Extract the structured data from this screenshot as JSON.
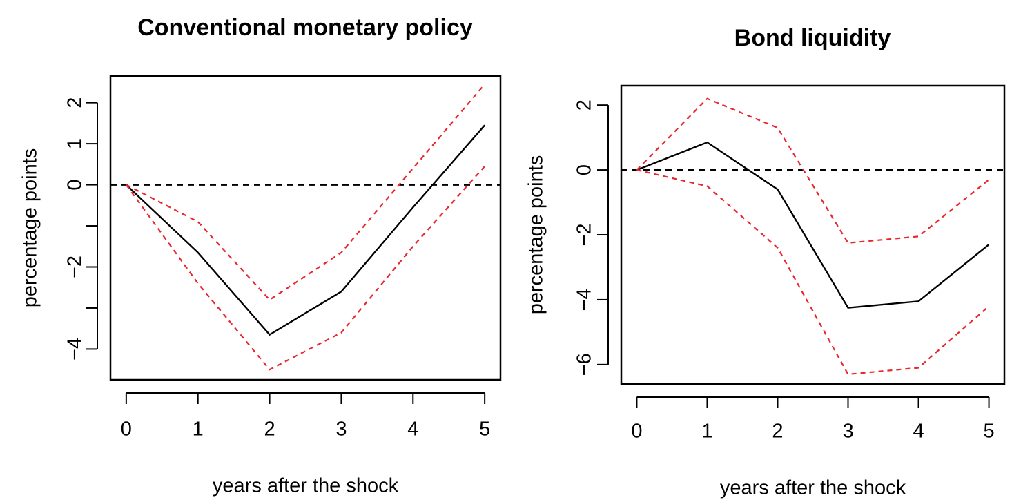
{
  "chart_data": [
    {
      "type": "line",
      "title": "Conventional monetary policy",
      "xlabel": "years after the shock",
      "ylabel": "percentage points",
      "x": [
        0,
        1,
        2,
        3,
        4,
        5
      ],
      "xticks": [
        "0",
        "1",
        "2",
        "3",
        "4",
        "5"
      ],
      "yticks": [
        2,
        1,
        0,
        -1,
        -2,
        -3,
        -4
      ],
      "ytick_labels": [
        "2",
        "1",
        "0",
        "",
        "−2",
        "",
        "−4"
      ],
      "xlim": [
        -0.22,
        5.22
      ],
      "ylim": [
        -4.75,
        2.65
      ],
      "reference_line": 0,
      "series": [
        {
          "role": "estimate",
          "color": "#000000",
          "style": "solid",
          "values": [
            0,
            -1.65,
            -3.65,
            -2.6,
            -0.55,
            1.45
          ]
        },
        {
          "role": "upper-band",
          "color": "#e8262b",
          "style": "dashed",
          "values": [
            0,
            -0.9,
            -2.8,
            -1.65,
            0.4,
            2.45
          ]
        },
        {
          "role": "lower-band",
          "color": "#e8262b",
          "style": "dashed",
          "values": [
            0,
            -2.4,
            -4.5,
            -3.6,
            -1.5,
            0.45
          ]
        }
      ],
      "grid": false,
      "legend": "none"
    },
    {
      "type": "line",
      "title": "Bond liquidity",
      "xlabel": "years after the shock",
      "ylabel": "percentage points",
      "x": [
        0,
        1,
        2,
        3,
        4,
        5
      ],
      "xticks": [
        "0",
        "1",
        "2",
        "3",
        "4",
        "5"
      ],
      "yticks": [
        2,
        0,
        -2,
        -4,
        -6
      ],
      "ytick_labels": [
        "2",
        "0",
        "−2",
        "−4",
        "−6"
      ],
      "xlim": [
        -0.22,
        5.22
      ],
      "ylim": [
        -6.6,
        2.6
      ],
      "reference_line": 0,
      "series": [
        {
          "role": "estimate",
          "color": "#000000",
          "style": "solid",
          "values": [
            0,
            0.85,
            -0.6,
            -4.25,
            -4.05,
            -2.3
          ]
        },
        {
          "role": "upper-band",
          "color": "#e8262b",
          "style": "dashed",
          "values": [
            0,
            2.2,
            1.3,
            -2.25,
            -2.05,
            -0.3
          ]
        },
        {
          "role": "lower-band",
          "color": "#e8262b",
          "style": "dashed",
          "values": [
            0,
            -0.5,
            -2.4,
            -6.3,
            -6.1,
            -4.2
          ]
        }
      ],
      "grid": false,
      "legend": "none"
    }
  ]
}
